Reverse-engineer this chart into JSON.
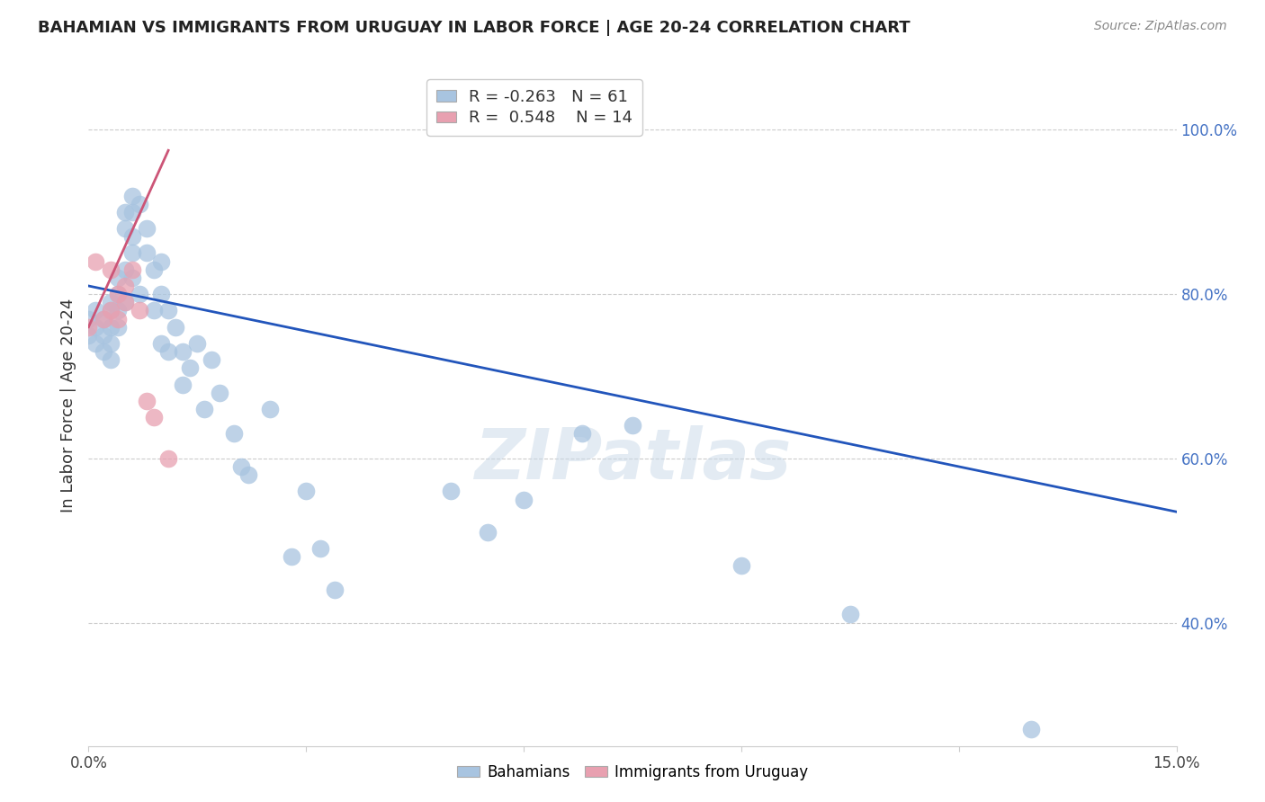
{
  "title": "BAHAMIAN VS IMMIGRANTS FROM URUGUAY IN LABOR FORCE | AGE 20-24 CORRELATION CHART",
  "source": "Source: ZipAtlas.com",
  "ylabel": "In Labor Force | Age 20-24",
  "xlim": [
    0.0,
    0.15
  ],
  "ylim": [
    0.25,
    1.08
  ],
  "watermark": "ZIPatlas",
  "legend_r_blue": "-0.263",
  "legend_n_blue": "61",
  "legend_r_pink": "0.548",
  "legend_n_pink": "14",
  "blue_color": "#a8c4e0",
  "pink_color": "#e8a0b0",
  "line_blue_color": "#2255bb",
  "line_pink_color": "#cc5577",
  "bahamians_x": [
    0.0,
    0.0,
    0.001,
    0.001,
    0.001,
    0.002,
    0.002,
    0.002,
    0.003,
    0.003,
    0.003,
    0.003,
    0.003,
    0.004,
    0.004,
    0.004,
    0.004,
    0.005,
    0.005,
    0.005,
    0.005,
    0.006,
    0.006,
    0.006,
    0.006,
    0.006,
    0.007,
    0.007,
    0.008,
    0.008,
    0.009,
    0.009,
    0.01,
    0.01,
    0.01,
    0.011,
    0.011,
    0.012,
    0.013,
    0.013,
    0.014,
    0.015,
    0.016,
    0.017,
    0.018,
    0.02,
    0.021,
    0.022,
    0.025,
    0.028,
    0.03,
    0.032,
    0.034,
    0.05,
    0.055,
    0.06,
    0.068,
    0.075,
    0.09,
    0.105,
    0.13
  ],
  "bahamians_y": [
    0.77,
    0.75,
    0.78,
    0.76,
    0.74,
    0.77,
    0.75,
    0.73,
    0.79,
    0.78,
    0.76,
    0.74,
    0.72,
    0.82,
    0.8,
    0.78,
    0.76,
    0.9,
    0.88,
    0.83,
    0.79,
    0.92,
    0.9,
    0.87,
    0.85,
    0.82,
    0.91,
    0.8,
    0.88,
    0.85,
    0.83,
    0.78,
    0.84,
    0.8,
    0.74,
    0.78,
    0.73,
    0.76,
    0.73,
    0.69,
    0.71,
    0.74,
    0.66,
    0.72,
    0.68,
    0.63,
    0.59,
    0.58,
    0.66,
    0.48,
    0.56,
    0.49,
    0.44,
    0.56,
    0.51,
    0.55,
    0.63,
    0.64,
    0.47,
    0.41,
    0.27
  ],
  "uruguay_x": [
    0.0,
    0.001,
    0.002,
    0.003,
    0.003,
    0.004,
    0.004,
    0.005,
    0.005,
    0.006,
    0.007,
    0.008,
    0.009,
    0.011
  ],
  "uruguay_y": [
    0.76,
    0.84,
    0.77,
    0.83,
    0.78,
    0.8,
    0.77,
    0.81,
    0.79,
    0.83,
    0.78,
    0.67,
    0.65,
    0.6
  ],
  "blue_line_x": [
    0.0,
    0.15
  ],
  "blue_line_y": [
    0.81,
    0.535
  ],
  "pink_line_x": [
    0.0,
    0.011
  ],
  "pink_line_y": [
    0.76,
    0.975
  ],
  "ytick_positions": [
    0.4,
    0.6,
    0.8,
    1.0
  ],
  "ytick_labels": [
    "40.0%",
    "60.0%",
    "80.0%",
    "100.0%"
  ],
  "xtick_positions": [
    0.0,
    0.03,
    0.06,
    0.09,
    0.12,
    0.15
  ],
  "xtick_labels": [
    "0.0%",
    "",
    "",
    "",
    "",
    "15.0%"
  ]
}
